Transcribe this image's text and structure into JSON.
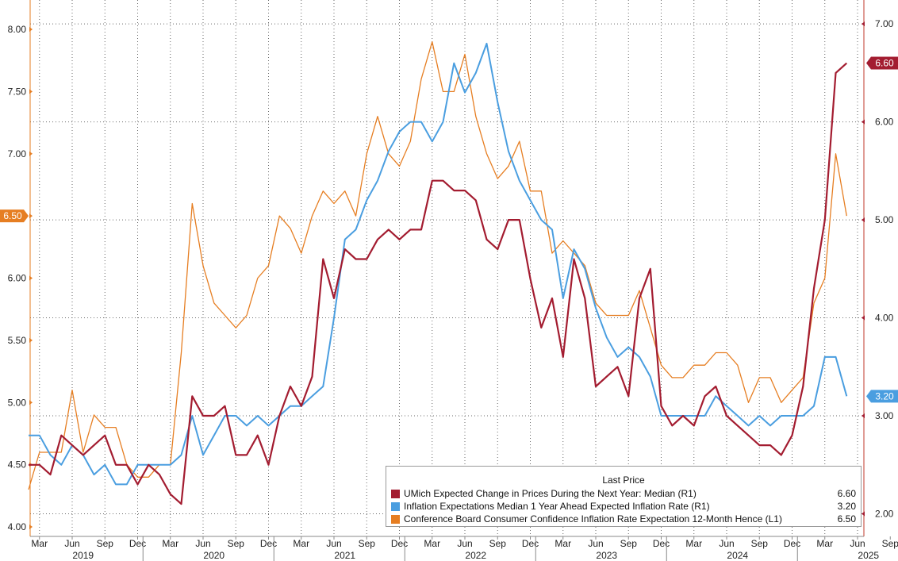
{
  "chart_data": {
    "type": "line",
    "x_months": [
      "2019-02",
      "2019-03",
      "2019-04",
      "2019-05",
      "2019-06",
      "2019-07",
      "2019-08",
      "2019-09",
      "2019-10",
      "2019-11",
      "2019-12",
      "2020-01",
      "2020-02",
      "2020-03",
      "2020-04",
      "2020-05",
      "2020-06",
      "2020-07",
      "2020-08",
      "2020-09",
      "2020-10",
      "2020-11",
      "2020-12",
      "2021-01",
      "2021-02",
      "2021-03",
      "2021-04",
      "2021-05",
      "2021-06",
      "2021-07",
      "2021-08",
      "2021-09",
      "2021-10",
      "2021-11",
      "2021-12",
      "2022-01",
      "2022-02",
      "2022-03",
      "2022-04",
      "2022-05",
      "2022-06",
      "2022-07",
      "2022-08",
      "2022-09",
      "2022-10",
      "2022-11",
      "2022-12",
      "2023-01",
      "2023-02",
      "2023-03",
      "2023-04",
      "2023-05",
      "2023-06",
      "2023-07",
      "2023-08",
      "2023-09",
      "2023-10",
      "2023-11",
      "2023-12",
      "2024-01",
      "2024-02",
      "2024-03",
      "2024-04",
      "2024-05",
      "2024-06",
      "2024-07",
      "2024-08",
      "2024-09",
      "2024-10",
      "2024-11",
      "2024-12",
      "2025-01",
      "2025-02",
      "2025-03",
      "2025-04",
      "2025-05"
    ],
    "x_tick_labels": [
      "Mar",
      "Jun",
      "Sep",
      "Dec",
      "Mar",
      "Jun",
      "Sep",
      "Dec",
      "Mar",
      "Jun",
      "Sep",
      "Dec",
      "Mar",
      "Jun",
      "Sep",
      "Dec",
      "Mar",
      "Jun",
      "Sep",
      "Dec",
      "Mar",
      "Jun",
      "Sep",
      "Dec",
      "Mar",
      "Jun",
      "Sep",
      "Dec",
      "Mar",
      "Jun"
    ],
    "x_year_labels": [
      "2019",
      "2020",
      "2021",
      "2022",
      "2023",
      "2024",
      "2025"
    ],
    "left_axis": {
      "ylim": [
        4.0,
        8.0
      ],
      "ticks": [
        "4.00",
        "4.50",
        "5.00",
        "5.50",
        "6.00",
        "6.50",
        "7.00",
        "7.50",
        "8.00"
      ]
    },
    "right_axis": {
      "ylim": [
        1.85,
        7.05
      ],
      "ticks": [
        "2.00",
        "3.00",
        "4.00",
        "5.00",
        "6.00",
        "7.00"
      ]
    },
    "grid": true,
    "legend_title": "Last Price",
    "legend_position": "bottom-right",
    "series": [
      {
        "name": "UMich Expected Change in Prices During the Next Year: Median  (R1)",
        "axis": "right",
        "color": "#a31c30",
        "last_value": "6.60",
        "values": [
          2.5,
          2.5,
          2.4,
          2.8,
          2.7,
          2.6,
          2.7,
          2.8,
          2.5,
          2.5,
          2.3,
          2.5,
          2.4,
          2.2,
          2.1,
          3.2,
          3.0,
          3.0,
          3.1,
          2.6,
          2.6,
          2.8,
          2.5,
          3.0,
          3.3,
          3.1,
          3.4,
          4.6,
          4.2,
          4.7,
          4.6,
          4.6,
          4.8,
          4.9,
          4.8,
          4.9,
          4.9,
          5.4,
          5.4,
          5.3,
          5.3,
          5.2,
          4.8,
          4.7,
          5.0,
          5.0,
          4.4,
          3.9,
          4.2,
          3.6,
          4.6,
          4.2,
          3.3,
          3.4,
          3.5,
          3.2,
          4.2,
          4.5,
          3.1,
          2.9,
          3.0,
          2.9,
          3.2,
          3.3,
          3.0,
          2.9,
          2.8,
          2.7,
          2.7,
          2.6,
          2.8,
          3.3,
          4.3,
          5.0,
          6.5,
          6.6
        ]
      },
      {
        "name": "Inflation Expectations Median 1 Year Ahead Expected Inflation Rate  (R1)",
        "axis": "right",
        "color": "#4a9ee0",
        "last_value": "3.20",
        "values": [
          2.8,
          2.8,
          2.6,
          2.5,
          2.7,
          2.6,
          2.4,
          2.5,
          2.3,
          2.3,
          2.5,
          2.5,
          2.5,
          2.5,
          2.6,
          3.0,
          2.6,
          2.8,
          3.0,
          3.0,
          2.9,
          3.0,
          2.9,
          3.0,
          3.1,
          3.1,
          3.2,
          3.3,
          4.0,
          4.8,
          4.9,
          5.2,
          5.4,
          5.7,
          5.9,
          6.0,
          6.0,
          5.8,
          6.0,
          6.6,
          6.3,
          6.5,
          6.8,
          6.2,
          5.7,
          5.4,
          5.2,
          5.0,
          4.9,
          4.2,
          4.7,
          4.5,
          4.1,
          3.8,
          3.6,
          3.7,
          3.6,
          3.4,
          3.0,
          3.0,
          3.0,
          3.0,
          3.0,
          3.2,
          3.1,
          3.0,
          2.9,
          3.0,
          2.9,
          3.0,
          3.0,
          3.0,
          3.1,
          3.6,
          3.6,
          3.2
        ]
      },
      {
        "name": "Conference Board Consumer Confidence Inflation Rate Expectation 12-Month Hence  (L1)",
        "axis": "left",
        "color": "#e67e22",
        "last_value": "6.50",
        "values": [
          4.3,
          4.6,
          4.6,
          4.6,
          5.1,
          4.6,
          4.9,
          4.8,
          4.8,
          4.5,
          4.4,
          4.4,
          4.5,
          4.5,
          5.4,
          6.6,
          6.1,
          5.8,
          5.7,
          5.6,
          5.7,
          6.0,
          6.1,
          6.5,
          6.4,
          6.2,
          6.5,
          6.7,
          6.6,
          6.7,
          6.5,
          7.0,
          7.3,
          7.0,
          6.9,
          7.1,
          7.6,
          7.9,
          7.5,
          7.5,
          7.8,
          7.3,
          7.0,
          6.8,
          6.9,
          7.1,
          6.7,
          6.7,
          6.2,
          6.3,
          6.2,
          6.1,
          5.8,
          5.7,
          5.7,
          5.7,
          5.9,
          5.6,
          5.3,
          5.2,
          5.2,
          5.3,
          5.3,
          5.4,
          5.4,
          5.3,
          5.0,
          5.2,
          5.2,
          5.0,
          5.1,
          5.2,
          5.8,
          6.0,
          7.0,
          6.5
        ]
      }
    ]
  }
}
